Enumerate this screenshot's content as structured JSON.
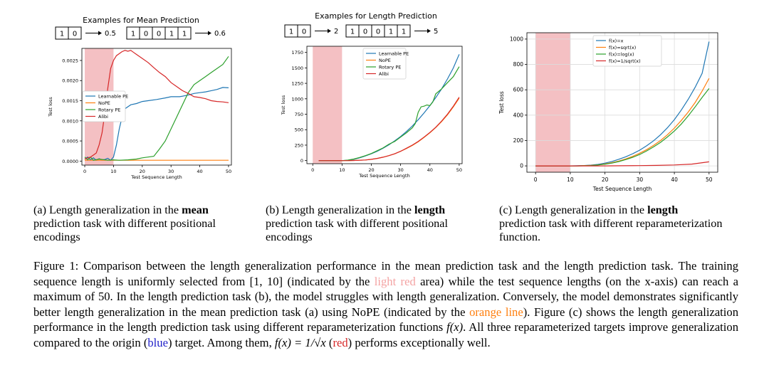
{
  "colors": {
    "blue": "#1f77b4",
    "orange": "#ff7f0e",
    "green": "#2ca02c",
    "red": "#d62728",
    "shade": "#f2b5b8"
  },
  "panels": {
    "a": {
      "title": "Examples for Mean Prediction",
      "example1": {
        "cells": [
          "1",
          "0"
        ],
        "result": "0.5"
      },
      "example2": {
        "cells": [
          "1",
          "0",
          "0",
          "1",
          "1"
        ],
        "result": "0.6"
      },
      "ylabel": "Test loss",
      "xlabel": "Test Sequence Length",
      "legend": [
        "Learnable PE",
        "NoPE",
        "Rotary PE",
        "Alibi"
      ]
    },
    "b": {
      "title": "Examples for Length Prediction",
      "example1": {
        "cells": [
          "1",
          "0"
        ],
        "result": "2"
      },
      "example2": {
        "cells": [
          "1",
          "0",
          "0",
          "1",
          "1"
        ],
        "result": "5"
      },
      "ylabel": "Test loss",
      "xlabel": "Test Sequence Length",
      "legend": [
        "Learnable PE",
        "NoPE",
        "Rotary PE",
        "Alibi"
      ]
    },
    "c": {
      "ylabel": "Test loss",
      "xlabel": "Test Sequence Length",
      "legend": [
        "f(x)=x",
        "f(x)=sqrt(x)",
        "f(x)=log(x)",
        "f(x)=1/sqrt(x)"
      ]
    }
  },
  "chart_data": [
    {
      "type": "line",
      "xlabel": "Test Sequence Length",
      "ylabel": "Test loss",
      "xlim": [
        -1,
        51
      ],
      "ylim": [
        -0.0001,
        0.0028
      ],
      "xticks": [
        0,
        10,
        20,
        30,
        40,
        50
      ],
      "yticks": [
        0.0,
        0.0005,
        0.001,
        0.0015,
        0.002,
        0.0025
      ],
      "ytick_labels": [
        "0.0000",
        "0.0005",
        "0.0010",
        "0.0015",
        "0.0020",
        "0.0025"
      ],
      "shaded_x": [
        0,
        10
      ],
      "legend_position": "center-left",
      "series": [
        {
          "name": "Learnable PE",
          "color": "blue",
          "x": [
            0,
            1,
            2,
            3,
            4,
            5,
            6,
            7,
            8,
            9,
            10,
            11,
            12,
            13,
            14,
            16,
            18,
            20,
            22,
            25,
            28,
            30,
            33,
            36,
            38,
            40,
            42,
            44,
            46,
            48,
            50
          ],
          "y": [
            5e-05,
            0.0001,
            3e-05,
            8e-05,
            2e-05,
            6e-05,
            3e-05,
            4e-05,
            7e-05,
            2e-05,
            0.0001,
            0.0004,
            0.0008,
            0.0011,
            0.0013,
            0.0014,
            0.00143,
            0.00148,
            0.0015,
            0.00153,
            0.00157,
            0.0016,
            0.0016,
            0.00164,
            0.00168,
            0.0017,
            0.00172,
            0.00175,
            0.00178,
            0.00183,
            0.00182
          ]
        },
        {
          "name": "NoPE",
          "color": "orange",
          "x": [
            0,
            5,
            10,
            15,
            20,
            25,
            30,
            35,
            40,
            45,
            50
          ],
          "y": [
            2e-05,
            2e-05,
            2e-05,
            2e-05,
            2e-05,
            2e-05,
            2e-05,
            2e-05,
            2e-05,
            2e-05,
            2e-05
          ]
        },
        {
          "name": "Rotary PE",
          "color": "green",
          "x": [
            0,
            1,
            2,
            3,
            5,
            8,
            10,
            12,
            15,
            18,
            20,
            22,
            24,
            26,
            28,
            30,
            32,
            34,
            36,
            38,
            40,
            42,
            44,
            46,
            48,
            50
          ],
          "y": [
            0.0001,
            3e-05,
            0.0001,
            2e-05,
            5e-05,
            2e-05,
            3e-05,
            2e-05,
            3e-05,
            5e-05,
            8e-05,
            0.0001,
            0.00012,
            0.0003,
            0.0005,
            0.0008,
            0.0011,
            0.0014,
            0.0017,
            0.0019,
            0.002,
            0.0021,
            0.0022,
            0.0023,
            0.0024,
            0.0026
          ]
        },
        {
          "name": "Alibi",
          "color": "red",
          "x": [
            0,
            1,
            2,
            3,
            4,
            5,
            6,
            7,
            8,
            9,
            10,
            11,
            12,
            13,
            14,
            15,
            16,
            17,
            18,
            20,
            22,
            24,
            26,
            28,
            30,
            32,
            34,
            36,
            38,
            40,
            42,
            44,
            46,
            48,
            50
          ],
          "y": [
            5e-05,
            8e-05,
            0.0001,
            0.00015,
            0.0002,
            0.0004,
            0.0007,
            0.0012,
            0.0018,
            0.0023,
            0.0025,
            0.00262,
            0.00267,
            0.00272,
            0.00275,
            0.00273,
            0.00275,
            0.0027,
            0.00265,
            0.00255,
            0.00245,
            0.00232,
            0.0022,
            0.0021,
            0.00195,
            0.00185,
            0.00175,
            0.00168,
            0.0016,
            0.00158,
            0.00155,
            0.0015,
            0.00148,
            0.00147,
            0.00145
          ]
        }
      ]
    },
    {
      "type": "line",
      "xlabel": "Test Sequence Length",
      "ylabel": "Test loss",
      "xlim": [
        -2,
        51
      ],
      "ylim": [
        -50,
        1850
      ],
      "xticks": [
        0,
        10,
        20,
        30,
        40,
        50
      ],
      "yticks": [
        0,
        250,
        500,
        750,
        1000,
        1250,
        1500,
        1750
      ],
      "shaded_x": [
        0,
        10
      ],
      "legend_position": "top-center",
      "series": [
        {
          "name": "Learnable PE",
          "color": "blue",
          "x": [
            2,
            5,
            8,
            10,
            12,
            14,
            16,
            18,
            20,
            22,
            24,
            26,
            28,
            30,
            32,
            34,
            36,
            38,
            40,
            42,
            44,
            46,
            48,
            50
          ],
          "y": [
            0,
            0,
            0,
            0,
            5,
            20,
            45,
            75,
            110,
            150,
            200,
            255,
            320,
            390,
            470,
            560,
            660,
            770,
            890,
            1020,
            1160,
            1320,
            1500,
            1720
          ]
        },
        {
          "name": "NoPE",
          "color": "orange",
          "x": [
            2,
            5,
            8,
            10,
            12,
            14,
            16,
            18,
            20,
            22,
            24,
            26,
            28,
            30,
            32,
            34,
            36,
            38,
            40,
            42,
            44,
            46,
            48,
            50
          ],
          "y": [
            0,
            0,
            0,
            0,
            0,
            2,
            5,
            10,
            20,
            35,
            55,
            80,
            110,
            150,
            195,
            245,
            305,
            375,
            450,
            535,
            630,
            740,
            870,
            1010
          ]
        },
        {
          "name": "Rotary PE",
          "color": "green",
          "x": [
            2,
            5,
            8,
            10,
            12,
            14,
            16,
            18,
            20,
            22,
            24,
            26,
            28,
            30,
            32,
            34,
            35,
            36,
            37,
            38,
            39,
            40,
            41,
            42,
            44,
            46,
            48,
            50
          ],
          "y": [
            0,
            0,
            0,
            0,
            8,
            25,
            50,
            80,
            115,
            160,
            205,
            265,
            310,
            380,
            450,
            530,
            600,
            780,
            870,
            880,
            900,
            890,
            950,
            1080,
            1160,
            1260,
            1360,
            1520
          ]
        },
        {
          "name": "Alibi",
          "color": "red",
          "x": [
            2,
            5,
            8,
            10,
            12,
            14,
            16,
            18,
            20,
            22,
            24,
            26,
            28,
            30,
            32,
            34,
            36,
            38,
            40,
            42,
            44,
            46,
            48,
            50
          ],
          "y": [
            0,
            0,
            0,
            0,
            0,
            2,
            5,
            10,
            20,
            35,
            55,
            80,
            110,
            150,
            200,
            250,
            310,
            380,
            455,
            540,
            640,
            750,
            880,
            1025
          ]
        }
      ]
    },
    {
      "type": "line",
      "xlabel": "Test Sequence Length",
      "ylabel": "Test loss",
      "xlim": [
        -2.5,
        52.5
      ],
      "ylim": [
        -50,
        1050
      ],
      "xticks": [
        0,
        10,
        20,
        30,
        40,
        50
      ],
      "yticks": [
        0,
        200,
        400,
        600,
        800,
        1000
      ],
      "shaded_x": [
        0,
        10
      ],
      "legend_position": "top-center",
      "series": [
        {
          "name": "f(x)=x",
          "color": "blue",
          "x": [
            0,
            5,
            10,
            12,
            14,
            16,
            18,
            20,
            22,
            24,
            26,
            28,
            30,
            32,
            34,
            36,
            38,
            40,
            42,
            44,
            46,
            48,
            50
          ],
          "y": [
            0,
            0,
            0,
            1,
            3,
            6,
            12,
            22,
            35,
            52,
            72,
            96,
            124,
            158,
            198,
            245,
            300,
            365,
            440,
            525,
            620,
            730,
            980
          ]
        },
        {
          "name": "f(x)=sqrt(x)",
          "color": "orange",
          "x": [
            0,
            5,
            10,
            12,
            14,
            16,
            18,
            20,
            22,
            24,
            26,
            28,
            30,
            32,
            34,
            36,
            38,
            40,
            42,
            44,
            46,
            48,
            50
          ],
          "y": [
            0,
            0,
            0,
            0,
            2,
            4,
            8,
            15,
            25,
            38,
            55,
            75,
            100,
            128,
            162,
            200,
            245,
            298,
            358,
            425,
            500,
            590,
            690
          ]
        },
        {
          "name": "f(x)=log(x)",
          "color": "green",
          "x": [
            0,
            5,
            10,
            12,
            14,
            16,
            18,
            20,
            22,
            24,
            26,
            28,
            30,
            32,
            34,
            36,
            38,
            40,
            42,
            44,
            46,
            48,
            50
          ],
          "y": [
            0,
            0,
            0,
            0,
            1,
            3,
            7,
            13,
            22,
            34,
            50,
            68,
            90,
            118,
            150,
            185,
            228,
            275,
            330,
            395,
            465,
            540,
            610
          ]
        },
        {
          "name": "f(x)=1/sqrt(x)",
          "color": "red",
          "x": [
            0,
            5,
            10,
            15,
            20,
            25,
            30,
            35,
            40,
            45,
            50
          ],
          "y": [
            0,
            0,
            0,
            0,
            0,
            1,
            2,
            4,
            7,
            14,
            32
          ]
        }
      ]
    }
  ],
  "captions": {
    "a": {
      "before": "(a) Length generalization in the ",
      "bold": "mean",
      "after": " prediction task with different positional encodings"
    },
    "b": {
      "before": "(b) Length generalization in the ",
      "bold": "length",
      "after": " prediction task with different positional encodings"
    },
    "c": {
      "before": "(c) Length generalization in the ",
      "bold": "length",
      "after": " prediction task with different reparameterization function."
    }
  },
  "figure_caption": {
    "p1": "Figure 1: Comparison between the length generalization performance in the mean prediction task and the length prediction task. The training sequence length is uniformly selected from ",
    "range": "[1, 10]",
    "p2": " (indicated by the ",
    "light_red": "light red",
    "p3": " area) while the test sequence lengths (on the x-axis) can reach a maximum of 50. In the length prediction task (b), the model struggles with length generalization. Conversely, the model demonstrates significantly better length generalization in the mean prediction task (a) using NoPE (indicated by the ",
    "orange_line": "orange line",
    "p4": "). Figure (c) shows the length generalization performance in the length prediction task using different reparameterization functions ",
    "fx": "f(x)",
    "p5": ". All three reparameterized targets improve generalization compared to the origin (",
    "blue": "blue",
    "p6": ") target. Among them, ",
    "fx_eq": "f(x) = 1/√x",
    "p7": " (",
    "red": "red",
    "p8": ") performs exceptionally well."
  }
}
